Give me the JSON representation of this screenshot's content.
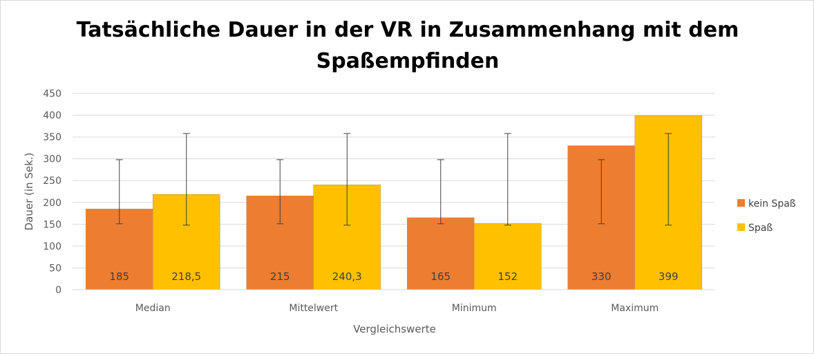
{
  "chart_data": {
    "type": "bar",
    "title_line1": "Tatsächliche Dauer in der VR in Zusammenhang mit dem",
    "title_line2": "Spaßempfinden",
    "xlabel": "Vergleichswerte",
    "ylabel": "Dauer (in Sek.)",
    "ylim": [
      0,
      450
    ],
    "yticks": [
      0,
      50,
      100,
      150,
      200,
      250,
      300,
      350,
      400,
      450
    ],
    "grid": true,
    "legend_position": "right",
    "categories": [
      "Median",
      "Mittelwert",
      "Minimum",
      "Maximum"
    ],
    "series": [
      {
        "name": "kein Spaß",
        "color": "#ed7d31",
        "values": [
          185,
          215,
          165,
          330
        ],
        "labels": [
          "185",
          "215",
          "165",
          "330"
        ],
        "error_bar": [
          151,
          298
        ]
      },
      {
        "name": "Spaß",
        "color": "#ffc000",
        "values": [
          218.5,
          240.3,
          152,
          399
        ],
        "labels": [
          "218,5",
          "240,3",
          "152",
          "399"
        ],
        "error_bar": [
          148,
          358
        ]
      }
    ]
  }
}
